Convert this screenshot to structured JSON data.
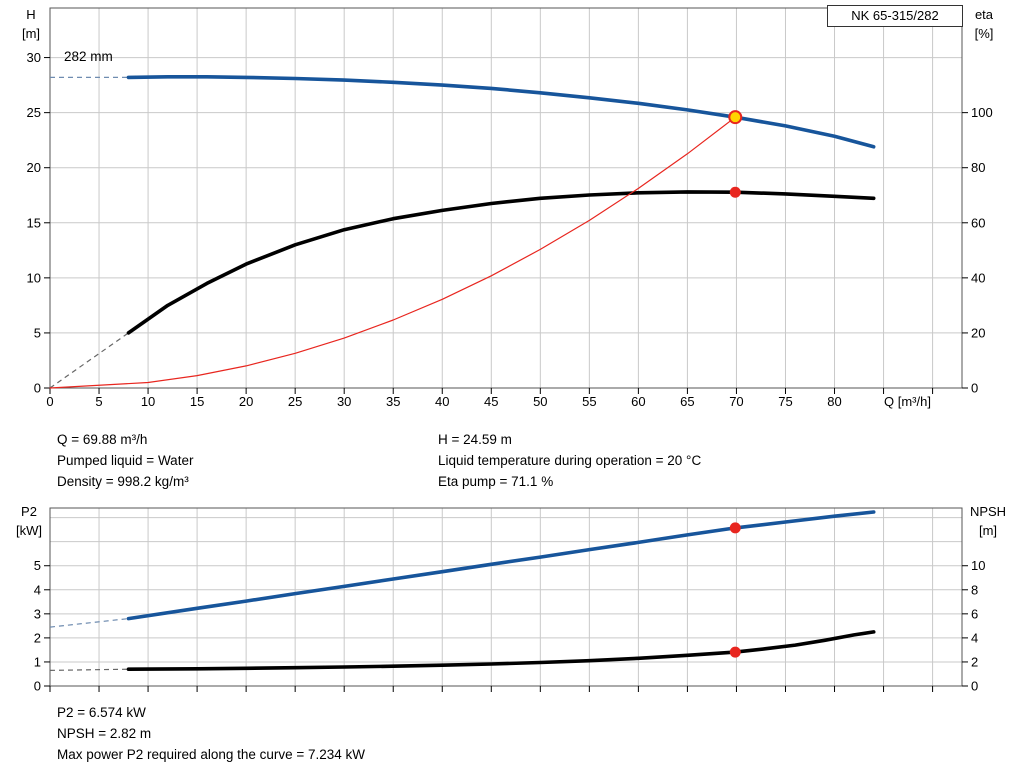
{
  "colors": {
    "grid": "#c9c9c9",
    "border": "#555555",
    "curve_blue": "#17559b",
    "curve_black": "#000000",
    "curve_red": "#e8261f",
    "marker_yellow": "#ffd400"
  },
  "chart_data": [
    {
      "type": "line",
      "name": "hq-performance-chart",
      "title": "NK 65-315/282",
      "annotation": "282 mm",
      "x_axis": {
        "label": "Q [m³/h]",
        "min": 0,
        "max": 93,
        "tick_step": 5,
        "grid_max": 90,
        "ticks": [
          0,
          5,
          10,
          15,
          20,
          25,
          30,
          35,
          40,
          45,
          50,
          55,
          60,
          65,
          70,
          75,
          80
        ]
      },
      "y_left": {
        "title": "H",
        "unit": "[m]",
        "min": 0,
        "max": 34.5,
        "ticks": [
          0,
          5,
          10,
          15,
          20,
          25,
          30
        ],
        "grid_values": [
          5,
          10,
          15,
          20,
          25,
          30
        ]
      },
      "y_right": {
        "title": "eta",
        "unit": "[%]",
        "min": 0,
        "max": 138,
        "ticks": [
          0,
          20,
          40,
          60,
          80,
          100
        ]
      },
      "series": [
        {
          "name": "head-curve",
          "axis": "left",
          "color": "#17559b",
          "width": 3.6,
          "points": [
            [
              8,
              28.2
            ],
            [
              12,
              28.25
            ],
            [
              16,
              28.25
            ],
            [
              20,
              28.2
            ],
            [
              25,
              28.1
            ],
            [
              30,
              27.95
            ],
            [
              35,
              27.75
            ],
            [
              40,
              27.5
            ],
            [
              45,
              27.2
            ],
            [
              50,
              26.8
            ],
            [
              55,
              26.35
            ],
            [
              60,
              25.85
            ],
            [
              65,
              25.25
            ],
            [
              69.88,
              24.59
            ],
            [
              75,
              23.8
            ],
            [
              80,
              22.85
            ],
            [
              84,
              21.9
            ]
          ]
        },
        {
          "name": "efficiency-curve",
          "axis": "right",
          "color": "#000000",
          "width": 3.6,
          "points": [
            [
              8,
              20
            ],
            [
              12,
              30
            ],
            [
              16,
              38
            ],
            [
              20,
              45
            ],
            [
              25,
              52
            ],
            [
              30,
              57.5
            ],
            [
              35,
              61.5
            ],
            [
              40,
              64.5
            ],
            [
              45,
              67
            ],
            [
              50,
              68.9
            ],
            [
              55,
              70.1
            ],
            [
              60,
              70.9
            ],
            [
              65,
              71.2
            ],
            [
              69.88,
              71.1
            ],
            [
              75,
              70.5
            ],
            [
              80,
              69.6
            ],
            [
              84,
              68.9
            ]
          ]
        },
        {
          "name": "system-curve",
          "axis": "left",
          "color": "#e8261f",
          "width": 1.2,
          "points": [
            [
              0,
              0
            ],
            [
              10,
              0.5
            ],
            [
              15,
              1.13
            ],
            [
              20,
              2.01
            ],
            [
              25,
              3.15
            ],
            [
              30,
              4.53
            ],
            [
              35,
              6.17
            ],
            [
              40,
              8.05
            ],
            [
              45,
              10.19
            ],
            [
              50,
              12.58
            ],
            [
              55,
              15.22
            ],
            [
              60,
              18.12
            ],
            [
              65,
              21.26
            ],
            [
              69.88,
              24.59
            ]
          ]
        }
      ],
      "dashes": [
        {
          "name": "head-curve-lead-in",
          "axis": "left",
          "color": "#6f8cb0",
          "points": [
            [
              0,
              28.2
            ],
            [
              8,
              28.2
            ]
          ]
        },
        {
          "name": "efficiency-curve-lead-in",
          "axis": "right",
          "color": "#666666",
          "points": [
            [
              0,
              0
            ],
            [
              8,
              20
            ]
          ]
        }
      ],
      "markers": [
        {
          "name": "duty-point",
          "axis": "left",
          "x": 69.88,
          "y": 24.59,
          "style": "ring",
          "fill": "#ffd400",
          "stroke": "#e8261f",
          "r": 6
        },
        {
          "name": "efficiency-point",
          "axis": "right",
          "x": 69.88,
          "y": 71.1,
          "style": "dot",
          "fill": "#e8261f",
          "r": 5.5
        }
      ]
    },
    {
      "type": "line",
      "name": "p2-npsh-chart",
      "x_axis": {
        "label": "",
        "min": 0,
        "max": 93,
        "tick_step": 5,
        "grid_max": 90,
        "ticks": []
      },
      "y_left": {
        "title": "P2",
        "unit": "[kW]",
        "min": 0,
        "max": 7.4,
        "ticks": [
          0,
          1,
          2,
          3,
          4,
          5
        ],
        "grid_values": [
          1,
          2,
          3,
          4,
          5,
          6,
          7
        ]
      },
      "y_right": {
        "title": "NPSH",
        "unit": "[m]",
        "min": 0,
        "max": 14.8,
        "ticks": [
          0,
          2,
          4,
          6,
          8,
          10
        ]
      },
      "series": [
        {
          "name": "p2-curve",
          "axis": "left",
          "color": "#17559b",
          "width": 3.6,
          "points": [
            [
              8,
              2.8
            ],
            [
              15,
              3.23
            ],
            [
              20,
              3.53
            ],
            [
              25,
              3.84
            ],
            [
              30,
              4.14
            ],
            [
              35,
              4.45
            ],
            [
              40,
              4.75
            ],
            [
              45,
              5.06
            ],
            [
              50,
              5.36
            ],
            [
              55,
              5.67
            ],
            [
              60,
              5.97
            ],
            [
              65,
              6.28
            ],
            [
              69.88,
              6.574
            ],
            [
              75,
              6.82
            ],
            [
              80,
              7.06
            ],
            [
              84,
              7.234
            ]
          ]
        },
        {
          "name": "npsh-curve",
          "axis": "right",
          "color": "#000000",
          "width": 3.6,
          "points": [
            [
              8,
              1.4
            ],
            [
              15,
              1.43
            ],
            [
              20,
              1.47
            ],
            [
              25,
              1.52
            ],
            [
              30,
              1.58
            ],
            [
              35,
              1.65
            ],
            [
              40,
              1.73
            ],
            [
              45,
              1.83
            ],
            [
              50,
              1.95
            ],
            [
              55,
              2.1
            ],
            [
              60,
              2.3
            ],
            [
              65,
              2.55
            ],
            [
              69.88,
              2.82
            ],
            [
              73,
              3.1
            ],
            [
              76,
              3.4
            ],
            [
              79,
              3.8
            ],
            [
              82,
              4.25
            ],
            [
              84,
              4.5
            ]
          ]
        }
      ],
      "dashes": [
        {
          "name": "p2-curve-lead-in",
          "axis": "left",
          "color": "#6f8cb0",
          "points": [
            [
              0,
              2.45
            ],
            [
              8,
              2.8
            ]
          ]
        },
        {
          "name": "npsh-curve-lead-in",
          "axis": "right",
          "color": "#666666",
          "points": [
            [
              0,
              1.3
            ],
            [
              8,
              1.4
            ]
          ]
        }
      ],
      "markers": [
        {
          "name": "p2-duty-point",
          "axis": "left",
          "x": 69.88,
          "y": 6.574,
          "style": "dot",
          "fill": "#e8261f",
          "r": 5.5
        },
        {
          "name": "npsh-duty-point",
          "axis": "right",
          "x": 69.88,
          "y": 2.82,
          "style": "dot",
          "fill": "#e8261f",
          "r": 5.5
        }
      ]
    }
  ],
  "readouts": {
    "left": [
      "Q = 69.88 m³/h",
      "Pumped liquid = Water",
      "Density = 998.2 kg/m³"
    ],
    "right": [
      "H = 24.59 m",
      "Liquid temperature during operation = 20 °C",
      "Eta pump = 71.1 %"
    ],
    "bottom": [
      "P2 = 6.574 kW",
      "NPSH = 2.82 m",
      "Max power P2 required along the curve = 7.234 kW"
    ]
  }
}
